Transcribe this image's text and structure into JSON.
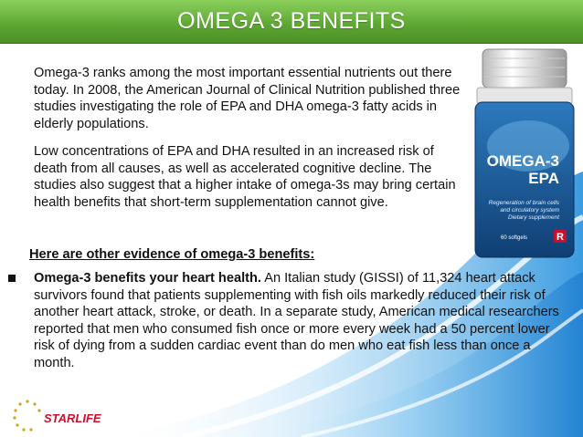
{
  "slide": {
    "title": "OMEGA 3 BENEFITS",
    "paragraph1": "Omega-3 ranks among the most important essential nutrients out there today. In 2008, the American Journal of Clinical Nutrition published three studies investigating the role of EPA and DHA omega-3 fatty acids in elderly populations.",
    "paragraph2": "Low concentrations of EPA and DHA resulted in an increased risk of death from all causes, as well as accelerated cognitive decline. The studies also suggest that a higher intake of omega-3s may bring certain health benefits that short-term supplementation cannot give.",
    "evidence_heading": "Here are other evidence of omega-3 benefits:",
    "bullet": {
      "lead": "Omega-3 benefits your heart health.",
      "text": " An Italian study (GISSI) of 11,324 heart attack survivors found that patients supplementing with fish oils markedly reduced their risk of another heart attack, stroke, or death. In a separate study, American medical researchers reported that men who consumed fish once or more every week had a 50 percent lower risk of dying from a sudden cardiac event than do men who eat fish less than once a month."
    }
  },
  "product": {
    "name_line1": "OMEGA-3",
    "name_line2": "EPA",
    "desc_line1": "Regeneration of brain cells",
    "desc_line2": "and circulatory system",
    "desc_line3": "Dietary supplement",
    "count": "60 softgels",
    "badge": "R"
  },
  "logo": {
    "text": "STARLIFE"
  },
  "colors": {
    "header": "#5ca532",
    "accent_blue": "#4aa3dd",
    "product_blue": "#1f5e9a",
    "logo_red": "#c8102e"
  }
}
